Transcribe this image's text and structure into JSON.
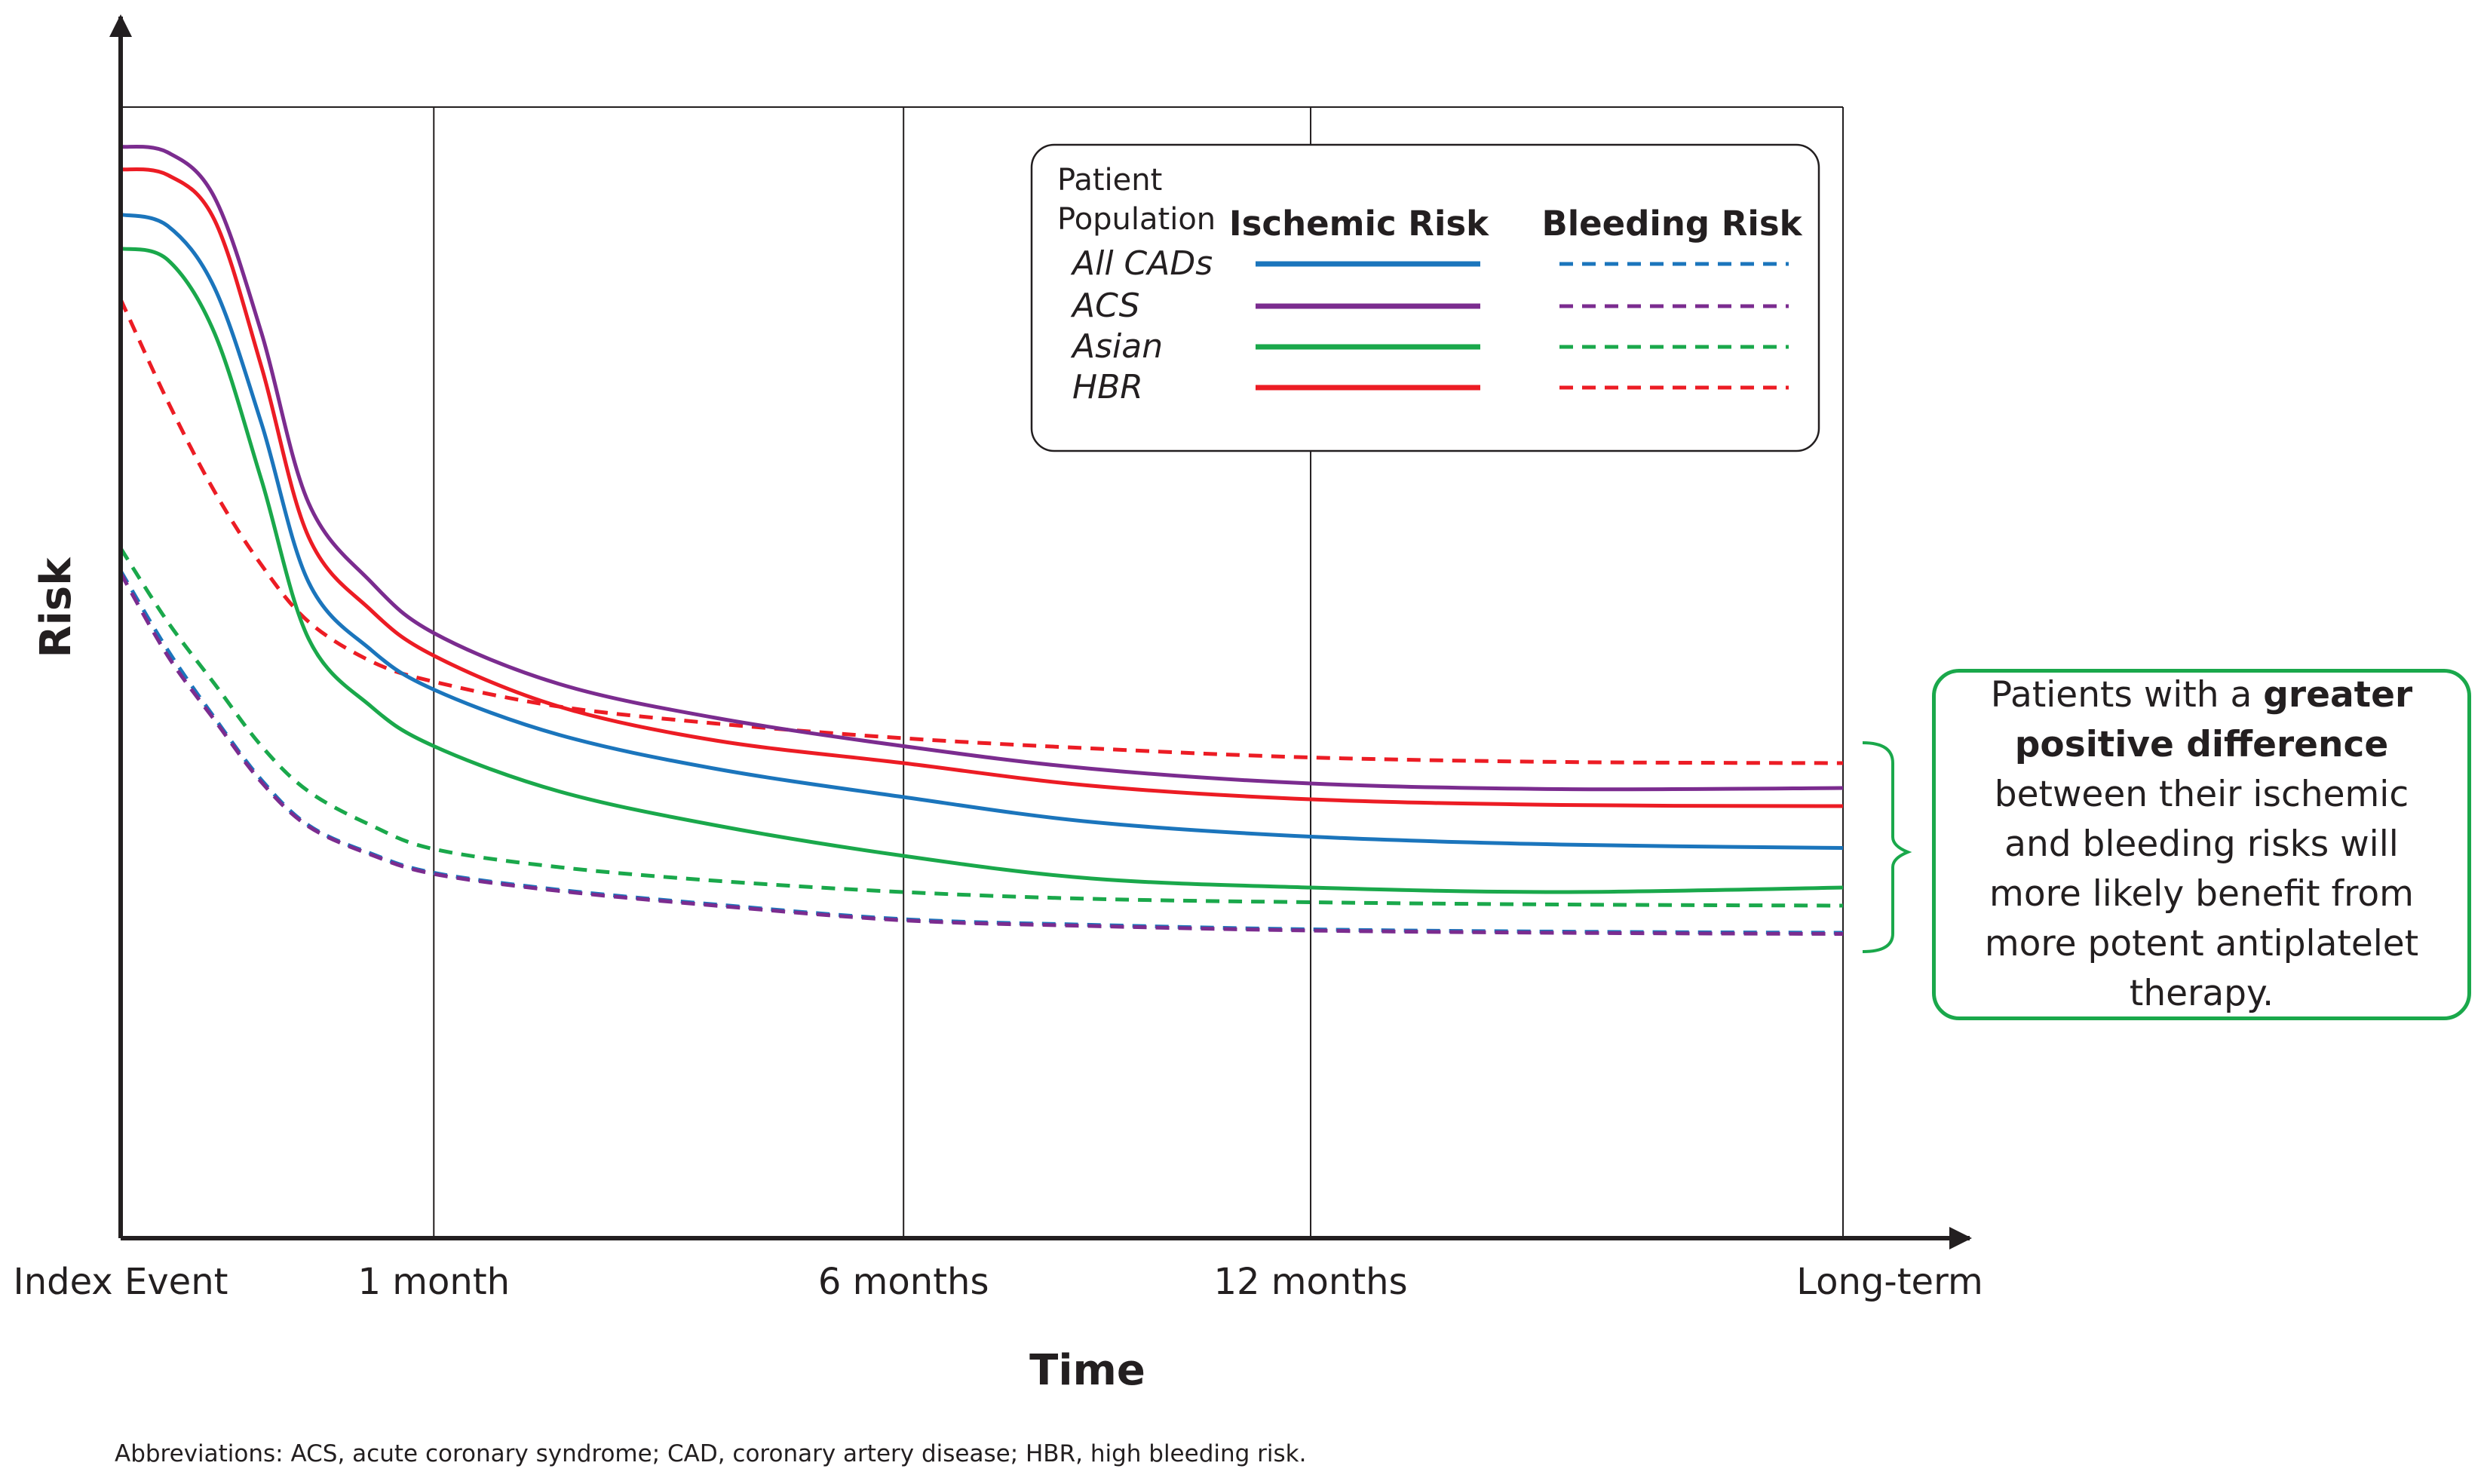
{
  "chart_data": {
    "type": "line",
    "title": "",
    "xlabel": "Time",
    "ylabel": "Risk",
    "x_ticks": [
      "Index Event",
      "1 month",
      "6 months",
      "12 months",
      "Long-term"
    ],
    "x_positions": [
      0,
      1,
      2.5,
      3.8,
      5.5
    ],
    "ylim": [
      0,
      100
    ],
    "x": [
      0,
      0.15,
      0.3,
      0.45,
      0.6,
      0.8,
      1.0,
      1.4,
      1.9,
      2.5,
      3.1,
      3.8,
      4.6,
      5.5
    ],
    "series": [
      {
        "name": "All CADs",
        "risk": "Ischemic",
        "color": "#1b75bc",
        "dashed": false,
        "values": [
          90.5,
          89.5,
          84,
          72,
          58,
          52,
          48.5,
          44.5,
          41.5,
          39,
          36.8,
          35.5,
          34.8,
          34.5
        ]
      },
      {
        "name": "ACS",
        "risk": "Ischemic",
        "color": "#7b2c8f",
        "dashed": false,
        "values": [
          96.5,
          96,
          92,
          80,
          65,
          58,
          53.5,
          49,
          46,
          43.5,
          41.5,
          40.2,
          39.7,
          39.8
        ]
      },
      {
        "name": "Asian",
        "risk": "Ischemic",
        "color": "#1aa84b",
        "dashed": false,
        "values": [
          87.5,
          86.5,
          80,
          67,
          53,
          47,
          43.5,
          39.5,
          36.5,
          33.8,
          31.8,
          31,
          30.6,
          31
        ]
      },
      {
        "name": "HBR",
        "risk": "Ischemic",
        "color": "#ec1c24",
        "dashed": false,
        "values": [
          94.5,
          94,
          90,
          77,
          62,
          55.5,
          51.5,
          47,
          44,
          42,
          40,
          38.8,
          38.3,
          38.2
        ]
      },
      {
        "name": "All CADs",
        "risk": "Bleeding",
        "color": "#1b75bc",
        "dashed": true,
        "values": [
          59,
          52,
          46,
          40.5,
          36.5,
          34,
          32.3,
          30.8,
          29.5,
          28.2,
          27.7,
          27.3,
          27.1,
          27
        ]
      },
      {
        "name": "ACS",
        "risk": "Bleeding",
        "color": "#7b2c8f",
        "dashed": true,
        "values": [
          58.8,
          51.5,
          45.8,
          40.3,
          36.4,
          33.9,
          32.2,
          30.7,
          29.4,
          28.1,
          27.6,
          27.2,
          27,
          26.9
        ]
      },
      {
        "name": "Asian",
        "risk": "Bleeding",
        "color": "#1aa84b",
        "dashed": true,
        "values": [
          61,
          54.5,
          49,
          43.5,
          39.5,
          36.5,
          34.4,
          32.8,
          31.6,
          30.6,
          30,
          29.7,
          29.5,
          29.4
        ]
      },
      {
        "name": "HBR",
        "risk": "Bleeding",
        "color": "#ec1c24",
        "dashed": true,
        "values": [
          83,
          74,
          66,
          59.5,
          54.5,
          51,
          49.2,
          47,
          45.5,
          44.2,
          43.3,
          42.5,
          42.1,
          42
        ]
      }
    ],
    "grid": "vertical lines at 1 month, 6 months, 12 months and Long-term",
    "legend": {
      "placement": "top-right",
      "header_lines": [
        "Patient",
        "Population"
      ],
      "col_ischemic": "Ischemic Risk",
      "col_bleeding": "Bleeding Risk",
      "entries": [
        "All CADs",
        "ACS",
        "Asian",
        "HBR"
      ],
      "colors": [
        "#1b75bc",
        "#7b2c8f",
        "#1aa84b",
        "#ec1c24"
      ]
    }
  },
  "callout": {
    "part1": "Patients with a ",
    "bold": "greater positive difference",
    "part2": " between their ischemic and bleeding risks will more likely benefit from more potent antiplatelet therapy."
  },
  "footnote": "Abbreviations: ACS, acute coronary syndrome; CAD, coronary artery disease; HBR, high bleeding risk."
}
